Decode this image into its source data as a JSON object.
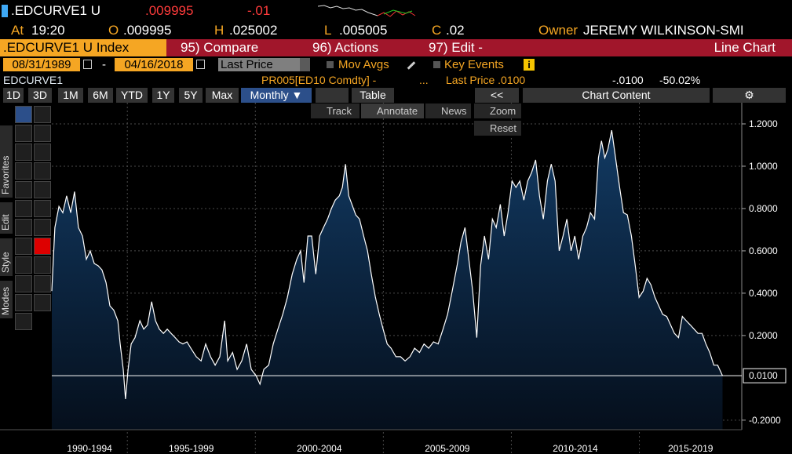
{
  "header": {
    "ticker": ".EDCURVE1 U",
    "last": ".009995",
    "change": "-.01",
    "at_label": "At",
    "time": "19:20",
    "open_label": "O",
    "open": ".009995",
    "high_label": "H",
    "high": ".025002",
    "low_label": "L",
    "low": ".005005",
    "close_label": "C",
    "close": ".02",
    "owner_label": "Owner",
    "owner": "JEREMY WILKINSON-SMI"
  },
  "toolbar": {
    "security": ".EDCURVE1 U Index",
    "menus": [
      "95) Compare",
      "96) Actions",
      "97) Edit -"
    ],
    "view": "Line Chart"
  },
  "range": {
    "start": "08/31/1989",
    "separator": "-",
    "end": "04/16/2018",
    "field": "Last Price",
    "mov_avgs": "Mov Avgs",
    "key_events": "Key Events",
    "info": "i"
  },
  "legend": {
    "source": "PR005[ED10 Comdty] -",
    "ellipsis": "...",
    "last": "Last Price .0100",
    "change": "-.0100",
    "pct": "-50.02%"
  },
  "periods": [
    "1D",
    "3D",
    "1M",
    "6M",
    "YTD",
    "1Y",
    "5Y",
    "Max"
  ],
  "frequency": "Monthly ▼",
  "table": "Table",
  "collapse": "<<",
  "chart_content": "Chart Content",
  "chart_tools": [
    "Track",
    "Annotate",
    "News",
    "Zoom",
    "Reset"
  ],
  "side_tabs": [
    "Favorites",
    "Edit",
    "Style",
    "Modes"
  ],
  "chart_data": {
    "type": "area",
    "x": [
      1992.05,
      1992.17,
      1992.33,
      1992.48,
      1992.63,
      1992.79,
      1992.94,
      1993.09,
      1993.25,
      1993.4,
      1993.55,
      1993.71,
      1993.86,
      1994.01,
      1994.17,
      1994.32,
      1994.47,
      1994.63,
      1994.72,
      1994.84,
      1994.93,
      1995.03,
      1995.15,
      1995.3,
      1995.49,
      1995.64,
      1995.79,
      1995.95,
      1996.1,
      1996.25,
      1996.41,
      1996.56,
      1996.71,
      1996.87,
      1997.02,
      1997.17,
      1997.33,
      1997.48,
      1997.69,
      1997.88,
      1998.06,
      1998.25,
      1998.43,
      1998.61,
      1998.8,
      1998.92,
      1999.11,
      1999.29,
      1999.47,
      1999.66,
      1999.84,
      2000.03,
      2000.18,
      2000.33,
      2000.52,
      2000.7,
      2000.88,
      2001.07,
      2001.25,
      2001.44,
      2001.62,
      2001.77,
      2001.9,
      2002.05,
      2002.2,
      2002.36,
      2002.51,
      2002.66,
      2002.82,
      2002.97,
      2003.12,
      2003.28,
      2003.4,
      2003.52,
      2003.65,
      2003.77,
      2003.92,
      2004.07,
      2004.23,
      2004.38,
      2004.53,
      2004.69,
      2004.84,
      2004.99,
      2005.15,
      2005.3,
      2005.49,
      2005.67,
      2005.85,
      2006.04,
      2006.22,
      2006.41,
      2006.59,
      2006.77,
      2006.96,
      2007.14,
      2007.33,
      2007.51,
      2007.69,
      2007.88,
      2008.03,
      2008.19,
      2008.34,
      2008.49,
      2008.65,
      2008.8,
      2008.95,
      2009.11,
      2009.26,
      2009.41,
      2009.57,
      2009.72,
      2009.87,
      2010.03,
      2010.18,
      2010.33,
      2010.49,
      2010.64,
      2010.79,
      2010.95,
      2011.1,
      2011.25,
      2011.41,
      2011.56,
      2011.71,
      2011.87,
      2012.02,
      2012.17,
      2012.33,
      2012.48,
      2012.63,
      2012.79,
      2012.94,
      2013.09,
      2013.25,
      2013.4,
      2013.52,
      2013.65,
      2013.77,
      2013.92,
      2014.07,
      2014.23,
      2014.38,
      2014.53,
      2014.69,
      2014.84,
      2014.99,
      2015.15,
      2015.3,
      2015.45,
      2015.61,
      2015.76,
      2015.91,
      2016.07,
      2016.22,
      2016.37,
      2016.53,
      2016.68,
      2016.83,
      2016.99,
      2017.14,
      2017.29,
      2017.45,
      2017.6,
      2017.75,
      2017.91,
      2018.06,
      2018.25
    ],
    "series": [
      {
        "name": "EDCURVE1",
        "color": "#ffffff",
        "fill": "#0d2c4e",
        "values": [
          0.41,
          0.71,
          0.81,
          0.78,
          0.86,
          0.78,
          0.88,
          0.71,
          0.67,
          0.56,
          0.6,
          0.54,
          0.53,
          0.51,
          0.45,
          0.34,
          0.32,
          0.27,
          0.16,
          0.04,
          -0.1,
          0.04,
          0.16,
          0.19,
          0.27,
          0.23,
          0.25,
          0.36,
          0.27,
          0.23,
          0.21,
          0.23,
          0.21,
          0.19,
          0.17,
          0.16,
          0.17,
          0.14,
          0.1,
          0.08,
          0.16,
          0.1,
          0.06,
          0.1,
          0.27,
          0.08,
          0.12,
          0.04,
          0.08,
          0.16,
          0.04,
          0.01,
          -0.03,
          0.04,
          0.06,
          0.16,
          0.23,
          0.3,
          0.38,
          0.49,
          0.56,
          0.6,
          0.45,
          0.67,
          0.67,
          0.49,
          0.67,
          0.71,
          0.75,
          0.8,
          0.84,
          0.86,
          0.9,
          1.01,
          0.86,
          0.82,
          0.77,
          0.75,
          0.67,
          0.6,
          0.49,
          0.38,
          0.3,
          0.23,
          0.16,
          0.14,
          0.1,
          0.1,
          0.08,
          0.1,
          0.14,
          0.12,
          0.16,
          0.14,
          0.17,
          0.16,
          0.23,
          0.3,
          0.41,
          0.53,
          0.64,
          0.71,
          0.56,
          0.41,
          0.19,
          0.53,
          0.67,
          0.56,
          0.75,
          0.71,
          0.82,
          0.67,
          0.78,
          0.93,
          0.9,
          0.93,
          0.84,
          0.93,
          0.97,
          1.03,
          0.86,
          0.75,
          0.93,
          1.01,
          0.93,
          0.6,
          0.67,
          0.75,
          0.6,
          0.67,
          0.56,
          0.67,
          0.71,
          0.78,
          0.75,
          1.04,
          1.12,
          1.04,
          1.08,
          1.17,
          1.04,
          0.9,
          0.78,
          0.77,
          0.67,
          0.53,
          0.38,
          0.41,
          0.47,
          0.44,
          0.38,
          0.34,
          0.3,
          0.29,
          0.25,
          0.21,
          0.19,
          0.29,
          0.27,
          0.25,
          0.23,
          0.21,
          0.21,
          0.16,
          0.12,
          0.06,
          0.06,
          0.01
        ]
      }
    ],
    "last_label": {
      "value": 0.01,
      "label": "0.0100"
    },
    "xlim": [
      1992.05,
      2019.0
    ],
    "xticks": [
      {
        "value": 1990,
        "label": "1990-1994"
      },
      {
        "value": 1995,
        "label": "1995-1999"
      },
      {
        "value": 2000,
        "label": "2000-2004"
      },
      {
        "value": 2005,
        "label": "2005-2009"
      },
      {
        "value": 2010,
        "label": "2010-2014"
      },
      {
        "value": 2015,
        "label": "2015-2019"
      }
    ],
    "ylim": [
      -0.245,
      1.3
    ],
    "yticks": [
      {
        "value": -0.2,
        "label": "-0.2000"
      },
      {
        "value": 0.2,
        "label": "0.2000"
      },
      {
        "value": 0.4,
        "label": "0.4000"
      },
      {
        "value": 0.6,
        "label": "0.6000"
      },
      {
        "value": 0.8,
        "label": "0.8000"
      },
      {
        "value": 1.0,
        "label": "1.0000"
      },
      {
        "value": 1.2,
        "label": "1.2000"
      }
    ],
    "grid": true
  }
}
